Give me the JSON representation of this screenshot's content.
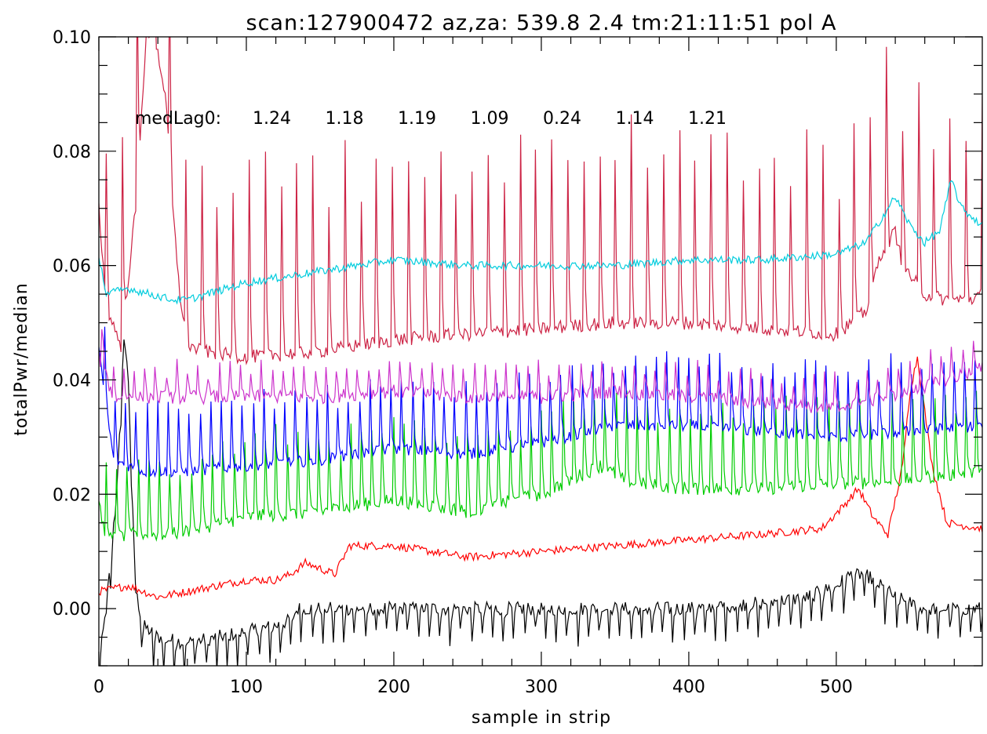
{
  "chart_data": {
    "type": "line",
    "title": "scan:127900472 az,za: 539.8     2.4 tm:21:11:51 pol A",
    "xlabel": "sample in strip",
    "ylabel": "totalPwr/median",
    "xlim": [
      0,
      599
    ],
    "ylim": [
      -0.01,
      0.1
    ],
    "xticks": [
      0,
      100,
      200,
      300,
      400,
      500
    ],
    "xtick_labels": [
      "0",
      "100",
      "200",
      "300",
      "400",
      "500"
    ],
    "yticks": [
      0.0,
      0.02,
      0.04,
      0.06,
      0.08,
      0.1
    ],
    "ytick_labels": [
      "0.00",
      "0.02",
      "0.04",
      "0.06",
      "0.08",
      "0.10"
    ],
    "grid": false,
    "annotation": {
      "label": "medLag0:",
      "values": [
        "1.24",
        "1.18",
        "1.19",
        "1.09",
        "0.24",
        "1.14",
        "1.21"
      ]
    },
    "series": [
      {
        "color": "#000000",
        "x": [
          0,
          5,
          12,
          17,
          20,
          25,
          30,
          40,
          60,
          80,
          100,
          120,
          130,
          135,
          150,
          200,
          250,
          300,
          350,
          400,
          450,
          480,
          500,
          510,
          520,
          540,
          560,
          580,
          599
        ],
        "y": [
          -0.01,
          0.0,
          0.02,
          0.048,
          0.04,
          0.003,
          -0.003,
          -0.005,
          -0.006,
          -0.005,
          -0.004,
          -0.003,
          -0.002,
          0.0,
          0.0,
          0.0,
          0.0,
          0.0,
          0.0,
          0.0,
          0.001,
          0.002,
          0.004,
          0.006,
          0.006,
          0.002,
          0.0,
          0.0,
          0.0
        ],
        "spike_period": 7.2,
        "spike_amp": -0.005,
        "noise": 0.0012
      },
      {
        "color": "#ff0000",
        "x": [
          0,
          20,
          40,
          60,
          80,
          100,
          120,
          130,
          140,
          160,
          170,
          200,
          250,
          300,
          350,
          400,
          450,
          490,
          505,
          515,
          525,
          535,
          545,
          550,
          555,
          565,
          575,
          599
        ],
        "y": [
          0.003,
          0.004,
          0.002,
          0.003,
          0.004,
          0.005,
          0.005,
          0.006,
          0.008,
          0.006,
          0.011,
          0.011,
          0.009,
          0.01,
          0.011,
          0.012,
          0.013,
          0.014,
          0.018,
          0.021,
          0.016,
          0.013,
          0.025,
          0.038,
          0.044,
          0.025,
          0.015,
          0.014
        ],
        "spike_period": 0,
        "spike_amp": 0,
        "noise": 0.0007
      },
      {
        "color": "#00cc00",
        "x": [
          0,
          5,
          20,
          50,
          100,
          150,
          200,
          250,
          300,
          340,
          360,
          400,
          450,
          500,
          530,
          560,
          599
        ],
        "y": [
          0.018,
          0.012,
          0.013,
          0.013,
          0.016,
          0.017,
          0.019,
          0.017,
          0.02,
          0.025,
          0.022,
          0.021,
          0.021,
          0.022,
          0.022,
          0.023,
          0.024
        ],
        "spike_period": 7.2,
        "spike_amp": 0.013,
        "noise": 0.0012
      },
      {
        "color": "#0000ff",
        "x": [
          0,
          10,
          30,
          60,
          100,
          150,
          200,
          250,
          300,
          350,
          400,
          450,
          500,
          550,
          599
        ],
        "y": [
          0.045,
          0.026,
          0.024,
          0.024,
          0.025,
          0.026,
          0.028,
          0.027,
          0.029,
          0.032,
          0.032,
          0.031,
          0.03,
          0.031,
          0.032
        ],
        "spike_period": 7.2,
        "spike_amp": 0.011,
        "noise": 0.001
      },
      {
        "color": "#cc33cc",
        "x": [
          0,
          10,
          50,
          100,
          150,
          200,
          250,
          300,
          350,
          400,
          450,
          500,
          550,
          599
        ],
        "y": [
          0.044,
          0.037,
          0.037,
          0.037,
          0.037,
          0.038,
          0.037,
          0.037,
          0.038,
          0.037,
          0.036,
          0.035,
          0.038,
          0.042
        ],
        "spike_period": 7.2,
        "spike_amp": 0.005,
        "noise": 0.0012
      },
      {
        "color": "#cc2244",
        "x": [
          0,
          5,
          15,
          25,
          32,
          38,
          45,
          50,
          55,
          60,
          70,
          100,
          150,
          200,
          250,
          300,
          350,
          400,
          450,
          500,
          520,
          530,
          540,
          545,
          560,
          575,
          590,
          599
        ],
        "y": [
          0.07,
          0.053,
          0.046,
          0.07,
          0.1,
          0.1,
          0.09,
          0.07,
          0.055,
          0.046,
          0.045,
          0.044,
          0.045,
          0.047,
          0.048,
          0.049,
          0.05,
          0.05,
          0.049,
          0.048,
          0.052,
          0.062,
          0.066,
          0.06,
          0.055,
          0.054,
          0.054,
          0.055
        ],
        "spike_period": 10.8,
        "spike_amp": 0.03,
        "noise": 0.0012
      },
      {
        "color": "#00ccdd",
        "x": [
          0,
          5,
          20,
          50,
          60,
          100,
          150,
          200,
          250,
          300,
          350,
          400,
          450,
          500,
          520,
          540,
          550,
          560,
          570,
          578,
          585,
          599
        ],
        "y": [
          0.062,
          0.055,
          0.056,
          0.054,
          0.054,
          0.057,
          0.059,
          0.061,
          0.06,
          0.06,
          0.06,
          0.061,
          0.061,
          0.062,
          0.064,
          0.072,
          0.067,
          0.064,
          0.066,
          0.075,
          0.07,
          0.067
        ],
        "spike_period": 0,
        "spike_amp": 0,
        "noise": 0.0007
      }
    ]
  }
}
